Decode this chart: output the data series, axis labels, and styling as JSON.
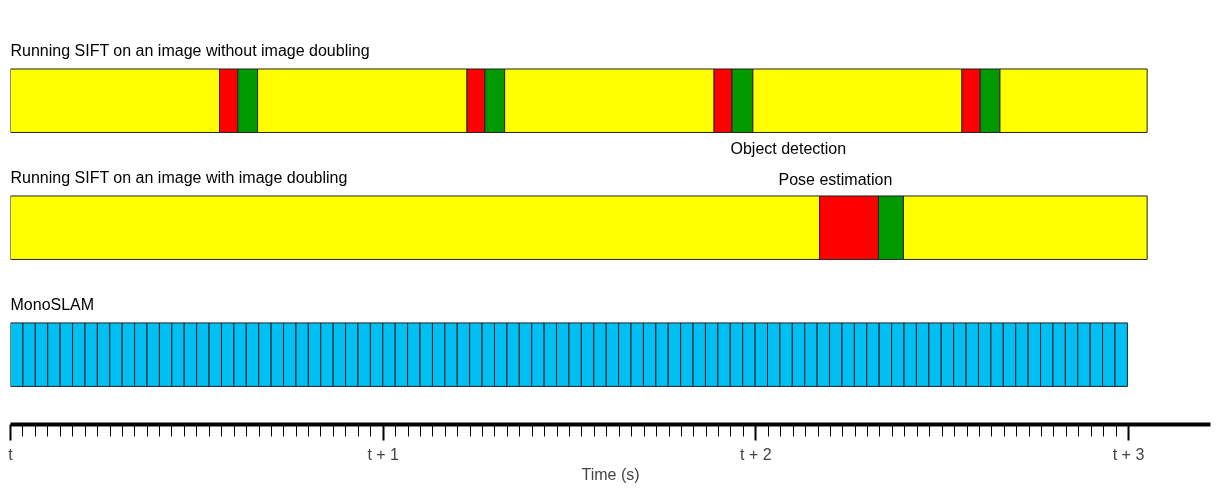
{
  "chart_data": {
    "type": "bar",
    "orientation": "horizontal",
    "stacked": true,
    "categories": [
      "Running SIFT on an image without image doubling",
      "Running SIFT on an image with image doubling",
      "MonoSLAM"
    ],
    "xlabel": "Time (s)",
    "tick_labels": "x",
    "grid": false,
    "xlim": [
      0,
      3.22
    ],
    "xticks": [
      {
        "value": 0,
        "label": "t"
      },
      {
        "value": 1,
        "label": "t + 1"
      },
      {
        "value": 2,
        "label": "t + 2"
      },
      {
        "value": 3,
        "label": "t + 3"
      },
      {
        "value": 0.033,
        "label": null
      },
      {
        "value": 0.067,
        "label": null
      },
      {
        "value": 0.1,
        "label": null
      },
      {
        "value": 0.133,
        "label": null
      },
      {
        "value": 0.167,
        "label": null
      },
      {
        "value": 0.2,
        "label": null
      },
      {
        "value": 0.233,
        "label": null
      },
      {
        "value": 0.267,
        "label": null
      },
      {
        "value": 0.3,
        "label": null
      },
      {
        "value": 0.333,
        "label": null
      },
      {
        "value": 0.367,
        "label": null
      },
      {
        "value": 0.4,
        "label": null
      },
      {
        "value": 0.433,
        "label": null
      },
      {
        "value": 0.467,
        "label": null
      },
      {
        "value": 0.5,
        "label": null
      },
      {
        "value": 0.533,
        "label": null
      },
      {
        "value": 0.567,
        "label": null
      },
      {
        "value": 0.6,
        "label": null
      },
      {
        "value": 0.633,
        "label": null
      },
      {
        "value": 0.667,
        "label": null
      },
      {
        "value": 0.7,
        "label": null
      },
      {
        "value": 0.733,
        "label": null
      },
      {
        "value": 0.767,
        "label": null
      },
      {
        "value": 0.8,
        "label": null
      },
      {
        "value": 0.833,
        "label": null
      },
      {
        "value": 0.867,
        "label": null
      },
      {
        "value": 0.9,
        "label": null
      },
      {
        "value": 0.933,
        "label": null
      },
      {
        "value": 0.967,
        "label": null
      },
      {
        "value": 1.033,
        "label": null
      },
      {
        "value": 1.067,
        "label": null
      },
      {
        "value": 1.1,
        "label": null
      },
      {
        "value": 1.133,
        "label": null
      },
      {
        "value": 1.167,
        "label": null
      },
      {
        "value": 1.2,
        "label": null
      },
      {
        "value": 1.233,
        "label": null
      },
      {
        "value": 1.267,
        "label": null
      },
      {
        "value": 1.3,
        "label": null
      },
      {
        "value": 1.333,
        "label": null
      },
      {
        "value": 1.367,
        "label": null
      },
      {
        "value": 1.4,
        "label": null
      },
      {
        "value": 1.433,
        "label": null
      },
      {
        "value": 1.467,
        "label": null
      },
      {
        "value": 1.5,
        "label": null
      },
      {
        "value": 1.533,
        "label": null
      },
      {
        "value": 1.567,
        "label": null
      },
      {
        "value": 1.6,
        "label": null
      },
      {
        "value": 1.633,
        "label": null
      },
      {
        "value": 1.667,
        "label": null
      },
      {
        "value": 1.7,
        "label": null
      },
      {
        "value": 1.733,
        "label": null
      },
      {
        "value": 1.767,
        "label": null
      },
      {
        "value": 1.8,
        "label": null
      },
      {
        "value": 1.833,
        "label": null
      },
      {
        "value": 1.867,
        "label": null
      },
      {
        "value": 1.9,
        "label": null
      },
      {
        "value": 1.933,
        "label": null
      },
      {
        "value": 1.967,
        "label": null
      },
      {
        "value": 2.033,
        "label": null
      },
      {
        "value": 2.067,
        "label": null
      },
      {
        "value": 2.1,
        "label": null
      },
      {
        "value": 2.133,
        "label": null
      },
      {
        "value": 2.167,
        "label": null
      },
      {
        "value": 2.2,
        "label": null
      },
      {
        "value": 2.233,
        "label": null
      },
      {
        "value": 2.267,
        "label": null
      },
      {
        "value": 2.3,
        "label": null
      },
      {
        "value": 2.333,
        "label": null
      },
      {
        "value": 2.367,
        "label": null
      },
      {
        "value": 2.4,
        "label": null
      },
      {
        "value": 2.433,
        "label": null
      },
      {
        "value": 2.467,
        "label": null
      },
      {
        "value": 2.5,
        "label": null
      },
      {
        "value": 2.533,
        "label": null
      },
      {
        "value": 2.567,
        "label": null
      },
      {
        "value": 2.6,
        "label": null
      },
      {
        "value": 2.633,
        "label": null
      },
      {
        "value": 2.667,
        "label": null
      },
      {
        "value": 2.7,
        "label": null
      },
      {
        "value": 2.733,
        "label": null
      },
      {
        "value": 2.767,
        "label": null
      },
      {
        "value": 2.8,
        "label": null
      },
      {
        "value": 2.833,
        "label": null
      },
      {
        "value": 2.867,
        "label": null
      },
      {
        "value": 2.9,
        "label": null
      },
      {
        "value": 2.933,
        "label": null
      },
      {
        "value": 2.967,
        "label": null
      }
    ],
    "annotations": [
      "Object detection",
      "Pose estimation"
    ],
    "series": [
      {
        "colors": [
          "#ffff00",
          "#ffff00",
          "#00bff3"
        ],
        "values": [
          0.561,
          2.171,
          0.0333
        ]
      },
      {
        "colors": [
          "#ff0000",
          "#ff0000",
          "#00bff3"
        ],
        "values": [
          0.049,
          0.158,
          0.0333
        ]
      },
      {
        "colors": [
          "#009900",
          "#009900",
          "#00bff3"
        ],
        "values": [
          0.053,
          0.067,
          0.0333
        ]
      },
      {
        "colors": [
          "#ffff00",
          "#ffff00",
          "#00bff3"
        ],
        "values": [
          0.562,
          0.654,
          0.0333
        ]
      },
      {
        "colors": [
          "#ff0000",
          null,
          "#00bff3"
        ],
        "values": [
          0.048,
          null,
          0.0333
        ]
      },
      {
        "colors": [
          "#009900",
          null,
          "#00bff3"
        ],
        "values": [
          0.053,
          null,
          0.0333
        ]
      },
      {
        "colors": [
          "#ffff00",
          null,
          "#00bff3"
        ],
        "values": [
          0.562,
          null,
          0.0333
        ]
      },
      {
        "colors": [
          "#ff0000",
          null,
          "#00bff3"
        ],
        "values": [
          0.048,
          null,
          0.0333
        ]
      },
      {
        "colors": [
          "#009900",
          null,
          "#00bff3"
        ],
        "values": [
          0.056,
          null,
          0.0333
        ]
      },
      {
        "colors": [
          "#ffff00",
          null,
          "#00bff3"
        ],
        "values": [
          0.561,
          null,
          0.0333
        ]
      },
      {
        "colors": [
          "#ff0000",
          null,
          "#00bff3"
        ],
        "values": [
          0.049,
          null,
          0.0333
        ]
      },
      {
        "colors": [
          "#009900",
          null,
          "#00bff3"
        ],
        "values": [
          0.053,
          null,
          0.0333
        ]
      },
      {
        "colors": [
          "#ffff00",
          null,
          "#00bff3"
        ],
        "values": [
          0.395,
          null,
          0.0333
        ]
      },
      {
        "colors": [
          null,
          null,
          "#00bff3"
        ],
        "values": [
          null,
          null,
          0.0333
        ]
      },
      {
        "colors": [
          null,
          null,
          "#00bff3"
        ],
        "values": [
          null,
          null,
          0.0333
        ]
      },
      {
        "colors": [
          null,
          null,
          "#00bff3"
        ],
        "values": [
          null,
          null,
          0.0333
        ]
      },
      {
        "colors": [
          null,
          null,
          "#00bff3"
        ],
        "values": [
          null,
          null,
          0.0333
        ]
      },
      {
        "colors": [
          null,
          null,
          "#00bff3"
        ],
        "values": [
          null,
          null,
          0.0333
        ]
      },
      {
        "colors": [
          null,
          null,
          "#00bff3"
        ],
        "values": [
          null,
          null,
          0.0333
        ]
      },
      {
        "colors": [
          null,
          null,
          "#00bff3"
        ],
        "values": [
          null,
          null,
          0.0333
        ]
      },
      {
        "colors": [
          null,
          null,
          "#00bff3"
        ],
        "values": [
          null,
          null,
          0.0333
        ]
      },
      {
        "colors": [
          null,
          null,
          "#00bff3"
        ],
        "values": [
          null,
          null,
          0.0333
        ]
      },
      {
        "colors": [
          null,
          null,
          "#00bff3"
        ],
        "values": [
          null,
          null,
          0.0333
        ]
      },
      {
        "colors": [
          null,
          null,
          "#00bff3"
        ],
        "values": [
          null,
          null,
          0.0333
        ]
      },
      {
        "colors": [
          null,
          null,
          "#00bff3"
        ],
        "values": [
          null,
          null,
          0.0333
        ]
      },
      {
        "colors": [
          null,
          null,
          "#00bff3"
        ],
        "values": [
          null,
          null,
          0.0333
        ]
      },
      {
        "colors": [
          null,
          null,
          "#00bff3"
        ],
        "values": [
          null,
          null,
          0.0333
        ]
      },
      {
        "colors": [
          null,
          null,
          "#00bff3"
        ],
        "values": [
          null,
          null,
          0.0333
        ]
      },
      {
        "colors": [
          null,
          null,
          "#00bff3"
        ],
        "values": [
          null,
          null,
          0.0333
        ]
      },
      {
        "colors": [
          null,
          null,
          "#00bff3"
        ],
        "values": [
          null,
          null,
          0.0333
        ]
      },
      {
        "colors": [
          null,
          null,
          "#00bff3"
        ],
        "values": [
          null,
          null,
          0.0333
        ]
      },
      {
        "colors": [
          null,
          null,
          "#00bff3"
        ],
        "values": [
          null,
          null,
          0.0333
        ]
      },
      {
        "colors": [
          null,
          null,
          "#00bff3"
        ],
        "values": [
          null,
          null,
          0.0333
        ]
      },
      {
        "colors": [
          null,
          null,
          "#00bff3"
        ],
        "values": [
          null,
          null,
          0.0333
        ]
      },
      {
        "colors": [
          null,
          null,
          "#00bff3"
        ],
        "values": [
          null,
          null,
          0.0333
        ]
      },
      {
        "colors": [
          null,
          null,
          "#00bff3"
        ],
        "values": [
          null,
          null,
          0.0333
        ]
      },
      {
        "colors": [
          null,
          null,
          "#00bff3"
        ],
        "values": [
          null,
          null,
          0.0333
        ]
      },
      {
        "colors": [
          null,
          null,
          "#00bff3"
        ],
        "values": [
          null,
          null,
          0.0333
        ]
      },
      {
        "colors": [
          null,
          null,
          "#00bff3"
        ],
        "values": [
          null,
          null,
          0.0333
        ]
      },
      {
        "colors": [
          null,
          null,
          "#00bff3"
        ],
        "values": [
          null,
          null,
          0.0333
        ]
      },
      {
        "colors": [
          null,
          null,
          "#00bff3"
        ],
        "values": [
          null,
          null,
          0.0333
        ]
      },
      {
        "colors": [
          null,
          null,
          "#00bff3"
        ],
        "values": [
          null,
          null,
          0.0333
        ]
      },
      {
        "colors": [
          null,
          null,
          "#00bff3"
        ],
        "values": [
          null,
          null,
          0.0333
        ]
      },
      {
        "colors": [
          null,
          null,
          "#00bff3"
        ],
        "values": [
          null,
          null,
          0.0333
        ]
      },
      {
        "colors": [
          null,
          null,
          "#00bff3"
        ],
        "values": [
          null,
          null,
          0.0333
        ]
      },
      {
        "colors": [
          null,
          null,
          "#00bff3"
        ],
        "values": [
          null,
          null,
          0.0333
        ]
      },
      {
        "colors": [
          null,
          null,
          "#00bff3"
        ],
        "values": [
          null,
          null,
          0.0333
        ]
      },
      {
        "colors": [
          null,
          null,
          "#00bff3"
        ],
        "values": [
          null,
          null,
          0.0333
        ]
      },
      {
        "colors": [
          null,
          null,
          "#00bff3"
        ],
        "values": [
          null,
          null,
          0.0333
        ]
      },
      {
        "colors": [
          null,
          null,
          "#00bff3"
        ],
        "values": [
          null,
          null,
          0.0333
        ]
      },
      {
        "colors": [
          null,
          null,
          "#00bff3"
        ],
        "values": [
          null,
          null,
          0.0333
        ]
      },
      {
        "colors": [
          null,
          null,
          "#00bff3"
        ],
        "values": [
          null,
          null,
          0.0333
        ]
      },
      {
        "colors": [
          null,
          null,
          "#00bff3"
        ],
        "values": [
          null,
          null,
          0.0333
        ]
      },
      {
        "colors": [
          null,
          null,
          "#00bff3"
        ],
        "values": [
          null,
          null,
          0.0333
        ]
      },
      {
        "colors": [
          null,
          null,
          "#00bff3"
        ],
        "values": [
          null,
          null,
          0.0333
        ]
      },
      {
        "colors": [
          null,
          null,
          "#00bff3"
        ],
        "values": [
          null,
          null,
          0.0333
        ]
      },
      {
        "colors": [
          null,
          null,
          "#00bff3"
        ],
        "values": [
          null,
          null,
          0.0333
        ]
      },
      {
        "colors": [
          null,
          null,
          "#00bff3"
        ],
        "values": [
          null,
          null,
          0.0333
        ]
      },
      {
        "colors": [
          null,
          null,
          "#00bff3"
        ],
        "values": [
          null,
          null,
          0.0333
        ]
      },
      {
        "colors": [
          null,
          null,
          "#00bff3"
        ],
        "values": [
          null,
          null,
          0.0333
        ]
      },
      {
        "colors": [
          null,
          null,
          "#00bff3"
        ],
        "values": [
          null,
          null,
          0.0333
        ]
      },
      {
        "colors": [
          null,
          null,
          "#00bff3"
        ],
        "values": [
          null,
          null,
          0.0333
        ]
      },
      {
        "colors": [
          null,
          null,
          "#00bff3"
        ],
        "values": [
          null,
          null,
          0.0333
        ]
      },
      {
        "colors": [
          null,
          null,
          "#00bff3"
        ],
        "values": [
          null,
          null,
          0.0333
        ]
      },
      {
        "colors": [
          null,
          null,
          "#00bff3"
        ],
        "values": [
          null,
          null,
          0.0333
        ]
      },
      {
        "colors": [
          null,
          null,
          "#00bff3"
        ],
        "values": [
          null,
          null,
          0.0333
        ]
      },
      {
        "colors": [
          null,
          null,
          "#00bff3"
        ],
        "values": [
          null,
          null,
          0.0333
        ]
      },
      {
        "colors": [
          null,
          null,
          "#00bff3"
        ],
        "values": [
          null,
          null,
          0.0333
        ]
      },
      {
        "colors": [
          null,
          null,
          "#00bff3"
        ],
        "values": [
          null,
          null,
          0.0333
        ]
      },
      {
        "colors": [
          null,
          null,
          "#00bff3"
        ],
        "values": [
          null,
          null,
          0.0333
        ]
      },
      {
        "colors": [
          null,
          null,
          "#00bff3"
        ],
        "values": [
          null,
          null,
          0.0333
        ]
      },
      {
        "colors": [
          null,
          null,
          "#00bff3"
        ],
        "values": [
          null,
          null,
          0.0333
        ]
      },
      {
        "colors": [
          null,
          null,
          "#00bff3"
        ],
        "values": [
          null,
          null,
          0.0333
        ]
      },
      {
        "colors": [
          null,
          null,
          "#00bff3"
        ],
        "values": [
          null,
          null,
          0.0333
        ]
      },
      {
        "colors": [
          null,
          null,
          "#00bff3"
        ],
        "values": [
          null,
          null,
          0.0333
        ]
      },
      {
        "colors": [
          null,
          null,
          "#00bff3"
        ],
        "values": [
          null,
          null,
          0.0333
        ]
      },
      {
        "colors": [
          null,
          null,
          "#00bff3"
        ],
        "values": [
          null,
          null,
          0.0333
        ]
      },
      {
        "colors": [
          null,
          null,
          "#00bff3"
        ],
        "values": [
          null,
          null,
          0.0333
        ]
      },
      {
        "colors": [
          null,
          null,
          "#00bff3"
        ],
        "values": [
          null,
          null,
          0.0333
        ]
      },
      {
        "colors": [
          null,
          null,
          "#00bff3"
        ],
        "values": [
          null,
          null,
          0.0333
        ]
      },
      {
        "colors": [
          null,
          null,
          "#00bff3"
        ],
        "values": [
          null,
          null,
          0.0333
        ]
      },
      {
        "colors": [
          null,
          null,
          "#00bff3"
        ],
        "values": [
          null,
          null,
          0.0333
        ]
      },
      {
        "colors": [
          null,
          null,
          "#00bff3"
        ],
        "values": [
          null,
          null,
          0.0333
        ]
      },
      {
        "colors": [
          null,
          null,
          "#00bff3"
        ],
        "values": [
          null,
          null,
          0.0333
        ]
      },
      {
        "colors": [
          null,
          null,
          "#00bff3"
        ],
        "values": [
          null,
          null,
          0.0333
        ]
      },
      {
        "colors": [
          null,
          null,
          "#00bff3"
        ],
        "values": [
          null,
          null,
          0.0333
        ]
      },
      {
        "colors": [
          null,
          null,
          "#00bff3"
        ],
        "values": [
          null,
          null,
          0.0333
        ]
      },
      {
        "colors": [
          null,
          null,
          "#00bff3"
        ],
        "values": [
          null,
          null,
          0.0333
        ]
      },
      {
        "colors": [
          null,
          null,
          "#00bff3"
        ],
        "values": [
          null,
          null,
          0.0333
        ]
      },
      {
        "colors": [
          null,
          null,
          "#00bff3"
        ],
        "values": [
          null,
          null,
          0.0333
        ]
      }
    ]
  }
}
